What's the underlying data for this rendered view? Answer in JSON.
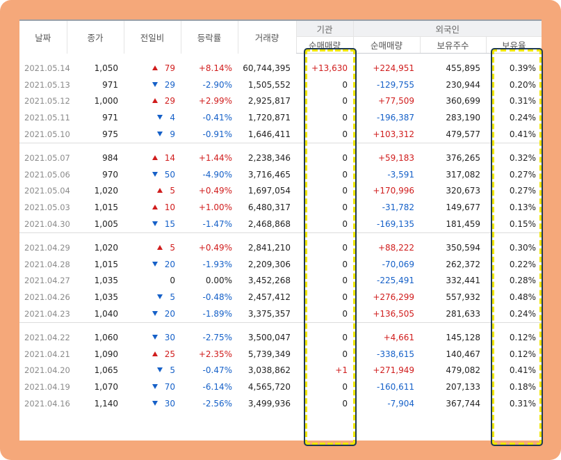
{
  "headers": {
    "date": "날짜",
    "close": "종가",
    "change": "전일비",
    "rate": "등락률",
    "volume": "거래량",
    "institution": "기관",
    "foreigner": "외국인",
    "inst_net": "순매매량",
    "frgn_net": "순매매량",
    "frgn_holdings": "보유주수",
    "frgn_ratio": "보유율"
  },
  "groups": [
    {
      "rows": [
        {
          "date": "2021.05.14",
          "close": "1,050",
          "dir": "up",
          "change": "79",
          "rate": "+8.14%",
          "volume": "60,744,395",
          "inst_net": "+13,630",
          "frgn_net": "+224,951",
          "holdings": "455,895",
          "ratio": "0.39%"
        },
        {
          "date": "2021.05.13",
          "close": "971",
          "dir": "down",
          "change": "29",
          "rate": "-2.90%",
          "volume": "1,505,552",
          "inst_net": "0",
          "frgn_net": "-129,755",
          "holdings": "230,944",
          "ratio": "0.20%"
        },
        {
          "date": "2021.05.12",
          "close": "1,000",
          "dir": "up",
          "change": "29",
          "rate": "+2.99%",
          "volume": "2,925,817",
          "inst_net": "0",
          "frgn_net": "+77,509",
          "holdings": "360,699",
          "ratio": "0.31%"
        },
        {
          "date": "2021.05.11",
          "close": "971",
          "dir": "down",
          "change": "4",
          "rate": "-0.41%",
          "volume": "1,720,871",
          "inst_net": "0",
          "frgn_net": "-196,387",
          "holdings": "283,190",
          "ratio": "0.24%"
        },
        {
          "date": "2021.05.10",
          "close": "975",
          "dir": "down",
          "change": "9",
          "rate": "-0.91%",
          "volume": "1,646,411",
          "inst_net": "0",
          "frgn_net": "+103,312",
          "holdings": "479,577",
          "ratio": "0.41%"
        }
      ]
    },
    {
      "rows": [
        {
          "date": "2021.05.07",
          "close": "984",
          "dir": "up",
          "change": "14",
          "rate": "+1.44%",
          "volume": "2,238,346",
          "inst_net": "0",
          "frgn_net": "+59,183",
          "holdings": "376,265",
          "ratio": "0.32%"
        },
        {
          "date": "2021.05.06",
          "close": "970",
          "dir": "down",
          "change": "50",
          "rate": "-4.90%",
          "volume": "3,716,465",
          "inst_net": "0",
          "frgn_net": "-3,591",
          "holdings": "317,082",
          "ratio": "0.27%"
        },
        {
          "date": "2021.05.04",
          "close": "1,020",
          "dir": "up",
          "change": "5",
          "rate": "+0.49%",
          "volume": "1,697,054",
          "inst_net": "0",
          "frgn_net": "+170,996",
          "holdings": "320,673",
          "ratio": "0.27%"
        },
        {
          "date": "2021.05.03",
          "close": "1,015",
          "dir": "up",
          "change": "10",
          "rate": "+1.00%",
          "volume": "6,480,317",
          "inst_net": "0",
          "frgn_net": "-31,782",
          "holdings": "149,677",
          "ratio": "0.13%"
        },
        {
          "date": "2021.04.30",
          "close": "1,005",
          "dir": "down",
          "change": "15",
          "rate": "-1.47%",
          "volume": "2,468,868",
          "inst_net": "0",
          "frgn_net": "-169,135",
          "holdings": "181,459",
          "ratio": "0.15%"
        }
      ]
    },
    {
      "rows": [
        {
          "date": "2021.04.29",
          "close": "1,020",
          "dir": "up",
          "change": "5",
          "rate": "+0.49%",
          "volume": "2,841,210",
          "inst_net": "0",
          "frgn_net": "+88,222",
          "holdings": "350,594",
          "ratio": "0.30%"
        },
        {
          "date": "2021.04.28",
          "close": "1,015",
          "dir": "down",
          "change": "20",
          "rate": "-1.93%",
          "volume": "2,209,306",
          "inst_net": "0",
          "frgn_net": "-70,069",
          "holdings": "262,372",
          "ratio": "0.22%"
        },
        {
          "date": "2021.04.27",
          "close": "1,035",
          "dir": "none",
          "change": "0",
          "rate": "0.00%",
          "volume": "3,452,268",
          "inst_net": "0",
          "frgn_net": "-225,491",
          "holdings": "332,441",
          "ratio": "0.28%"
        },
        {
          "date": "2021.04.26",
          "close": "1,035",
          "dir": "down",
          "change": "5",
          "rate": "-0.48%",
          "volume": "2,457,412",
          "inst_net": "0",
          "frgn_net": "+276,299",
          "holdings": "557,932",
          "ratio": "0.48%"
        },
        {
          "date": "2021.04.23",
          "close": "1,040",
          "dir": "down",
          "change": "20",
          "rate": "-1.89%",
          "volume": "3,375,357",
          "inst_net": "0",
          "frgn_net": "+136,505",
          "holdings": "281,633",
          "ratio": "0.24%"
        }
      ]
    },
    {
      "rows": [
        {
          "date": "2021.04.22",
          "close": "1,060",
          "dir": "down",
          "change": "30",
          "rate": "-2.75%",
          "volume": "3,500,047",
          "inst_net": "0",
          "frgn_net": "+4,661",
          "holdings": "145,128",
          "ratio": "0.12%"
        },
        {
          "date": "2021.04.21",
          "close": "1,090",
          "dir": "up",
          "change": "25",
          "rate": "+2.35%",
          "volume": "5,739,349",
          "inst_net": "0",
          "frgn_net": "-338,615",
          "holdings": "140,467",
          "ratio": "0.12%"
        },
        {
          "date": "2021.04.20",
          "close": "1,065",
          "dir": "down",
          "change": "5",
          "rate": "-0.47%",
          "volume": "3,038,862",
          "inst_net": "+1",
          "frgn_net": "+271,949",
          "holdings": "479,082",
          "ratio": "0.41%"
        },
        {
          "date": "2021.04.19",
          "close": "1,070",
          "dir": "down",
          "change": "70",
          "rate": "-6.14%",
          "volume": "4,565,720",
          "inst_net": "0",
          "frgn_net": "-160,611",
          "holdings": "207,133",
          "ratio": "0.18%"
        },
        {
          "date": "2021.04.16",
          "close": "1,140",
          "dir": "down",
          "change": "30",
          "rate": "-2.56%",
          "volume": "3,499,936",
          "inst_net": "0",
          "frgn_net": "-7,904",
          "holdings": "367,744",
          "ratio": "0.31%"
        }
      ]
    }
  ],
  "colors": {
    "up": "#d01c1c",
    "down": "#1560c8",
    "frame": "#f5a87a",
    "highlight": "#f0e600"
  }
}
